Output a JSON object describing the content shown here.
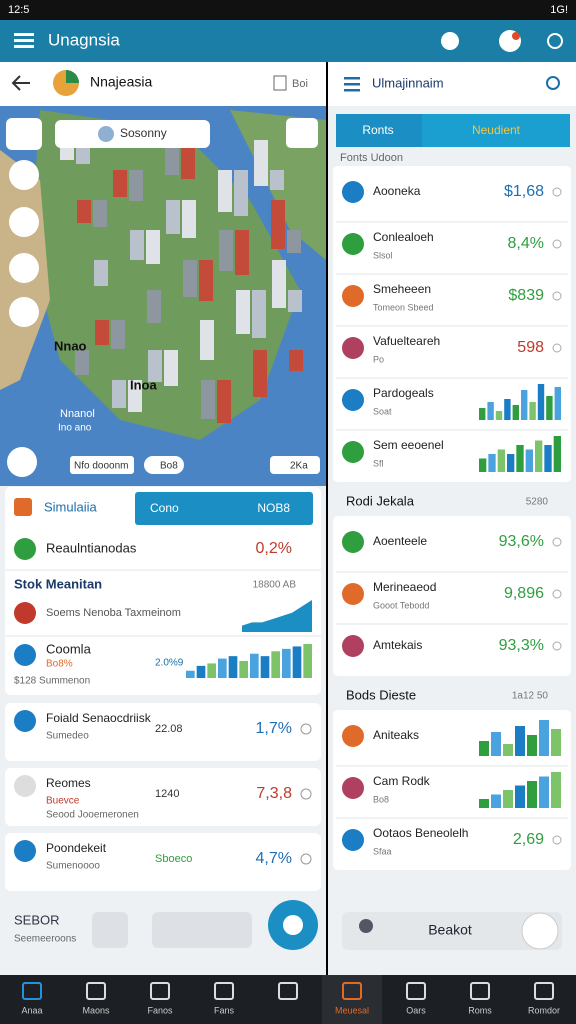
{
  "status_bar": {
    "time": "12:5",
    "signal": "1G!"
  },
  "app_bar": {
    "title": "Unagnsia"
  },
  "left_header": {
    "title": "Nnajeasia",
    "action": "Boi"
  },
  "map": {
    "search": "Sosonny",
    "labels": [
      "Nnao",
      "Inoa",
      "Nnanol",
      "Ino ano"
    ],
    "chip_left": "Nfo dooonm",
    "chip_mid": "Bo8",
    "chip_right": "2Ka"
  },
  "simulation": {
    "title": "Simulaiia",
    "button": "Cono",
    "button_value": "NOB8"
  },
  "summary": {
    "label": "Reaulntianodas",
    "value": "0,2%"
  },
  "stock": {
    "title": "Stok Meanitan",
    "meta": "18800 AB",
    "row_label": "Soems Nenoba Taxmeinom",
    "area": [
      2,
      3,
      3,
      4,
      5,
      6,
      8,
      10
    ]
  },
  "coomla": {
    "title": "Coomla",
    "sub": "Bo8%",
    "footer": "$128 Summenon",
    "value": "2.0%9",
    "bars": [
      3,
      5,
      6,
      8,
      9,
      7,
      10,
      9,
      11,
      12,
      13,
      14
    ]
  },
  "left_items": [
    {
      "title": "Foiald Senaocdriisk",
      "sub": "Sumedeo",
      "mid": "22.08",
      "value": "1,7%",
      "color": "#1f6fb5"
    },
    {
      "title": "Reomes",
      "sub": "Buevce",
      "sub2": "Seood Jooemeronen",
      "mid": "1240",
      "value": "7,3,8",
      "color": "#c0392b"
    },
    {
      "title": "Poondekeit",
      "sub": "Sumenoooo",
      "mid": "Sboeco",
      "value": "4,7%",
      "color": "#1f6fb5"
    }
  ],
  "left_footer": {
    "title": "SEBOR",
    "sub": "Seemeeroons"
  },
  "right_header": {
    "title": "Ulmajinnaim"
  },
  "tabs": [
    "Ronts",
    "Neudient"
  ],
  "sections": [
    {
      "title": "Fonts Udoon",
      "items": [
        {
          "title": "Aooneka",
          "value": "$1,68",
          "color": "#1f6fb5"
        },
        {
          "title": "Conlealoeh",
          "sub": "Slsol",
          "value": "8,4%",
          "color": "#2e9e3f"
        },
        {
          "title": "Smeheeen",
          "sub": "Tomeon Sbeed",
          "value": "$839",
          "color": "#2e9e3f"
        },
        {
          "title": "Vafuelteareh",
          "sub": "Po",
          "value": "598",
          "color": "#c0392b"
        },
        {
          "title": "Pardogeals",
          "sub": "Soat",
          "bars": [
            4,
            6,
            3,
            7,
            5,
            10,
            6,
            12,
            8,
            11
          ]
        },
        {
          "title": "Sem eeoenel",
          "sub": "Sfl",
          "bars": [
            3,
            4,
            5,
            4,
            6,
            5,
            7,
            6,
            8
          ]
        }
      ]
    },
    {
      "title": "Rodi Jekala",
      "meta": "5280",
      "items": [
        {
          "title": "Aoenteele",
          "value": "93,6%",
          "color": "#2e9e3f"
        },
        {
          "title": "Merineaeod",
          "sub": "Gooot Tebodd",
          "value": "9,896",
          "color": "#2e9e3f"
        },
        {
          "title": "Amtekais",
          "value": "93,3%",
          "color": "#2e9e3f"
        }
      ]
    },
    {
      "title": "Bods Dieste",
      "meta": "1a12 50",
      "items": [
        {
          "title": "Aniteaks",
          "bars": [
            5,
            8,
            4,
            10,
            7,
            12,
            9
          ]
        },
        {
          "title": "Cam Rodk",
          "sub": "Bo8",
          "bars": [
            2,
            3,
            4,
            5,
            6,
            7,
            8
          ]
        },
        {
          "title": "Ootaos Beneolelh",
          "sub": "Sfaa",
          "value": "2,69",
          "color": "#2e9e3f"
        }
      ]
    }
  ],
  "right_button": "Beakot",
  "nav": [
    "Anaa",
    "Maons",
    "Fanos",
    "Fans",
    "",
    "Meuesal",
    "Oars",
    "Roms",
    "Romdor"
  ]
}
